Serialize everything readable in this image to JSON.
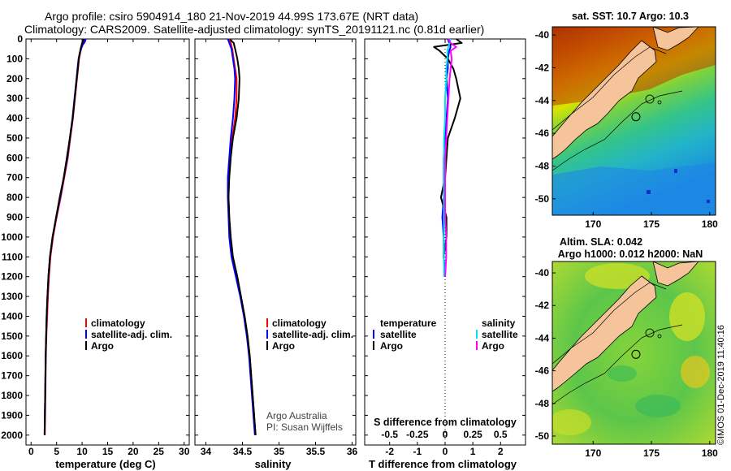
{
  "title": {
    "line1": "Argo profile: csiro 5904914_180 21-Nov-2019 44.99S 173.67E (NRT data)",
    "line2": "Climatology: CARS2009. Satellite-adjusted climatology: synTS_20191121.nc (0.81d earlier)"
  },
  "colors": {
    "climatology": "#ff0000",
    "satellite": "#0000ff",
    "argo": "#000000",
    "sat_salinity": "#00e5ee",
    "argo_salinity": "#ff00ff",
    "land": "#f5c49a"
  },
  "depth_axis": {
    "min": 0,
    "max": 2050,
    "ticks": [
      0,
      100,
      200,
      300,
      400,
      500,
      600,
      700,
      800,
      900,
      1000,
      1100,
      1200,
      1300,
      1400,
      1500,
      1600,
      1700,
      1800,
      1900,
      2000
    ]
  },
  "credit": {
    "line1": "Argo Australia",
    "line2": "PI: Susan Wijffels"
  },
  "imos_stamp": "©IMOS 01-Dec-2019 11:40:16",
  "chart_data": [
    {
      "type": "line",
      "name": "temperature-profile",
      "xlabel": "temperature (deg C)",
      "ylabel": "depth",
      "xlim": [
        -1,
        31
      ],
      "ylim": [
        2050,
        0
      ],
      "xticks": [
        0,
        5,
        10,
        15,
        20,
        25,
        30
      ],
      "legend": [
        "climatology",
        "satellite-adj. clim.",
        "Argo"
      ],
      "legend_position": "bottom-right",
      "depth": [
        0,
        10,
        20,
        30,
        50,
        75,
        100,
        150,
        200,
        300,
        400,
        500,
        600,
        700,
        800,
        900,
        1000,
        1100,
        1200,
        1300,
        1400,
        1500,
        1600,
        1700,
        1800,
        1900,
        2000
      ],
      "series": [
        {
          "name": "climatology",
          "color_key": "climatology",
          "values": [
            10.6,
            10.5,
            10.3,
            10.1,
            9.8,
            9.6,
            9.4,
            9.2,
            9.0,
            8.6,
            8.2,
            7.7,
            7.2,
            6.5,
            5.8,
            5.0,
            4.3,
            3.8,
            3.5,
            3.3,
            3.15,
            3.0,
            2.9,
            2.85,
            2.8,
            2.75,
            2.7
          ]
        },
        {
          "name": "satellite-adj. clim.",
          "color_key": "satellite",
          "values": [
            10.7,
            10.6,
            10.4,
            10.1,
            9.8,
            9.5,
            9.3,
            9.1,
            8.9,
            8.5,
            8.1,
            7.6,
            7.1,
            6.4,
            5.7,
            4.9,
            4.2,
            3.7,
            3.4,
            3.2,
            3.05,
            2.95,
            2.85,
            2.8,
            2.75,
            2.7,
            2.65
          ]
        },
        {
          "name": "Argo",
          "color_key": "argo",
          "values": [
            10.3,
            10.2,
            10.0,
            9.9,
            9.7,
            9.5,
            9.35,
            9.15,
            8.95,
            8.55,
            8.15,
            7.6,
            7.0,
            6.4,
            5.6,
            4.9,
            4.2,
            3.7,
            3.4,
            3.2,
            3.05,
            2.95,
            2.85,
            2.8,
            2.75,
            2.7,
            2.65
          ]
        }
      ]
    },
    {
      "type": "line",
      "name": "salinity-profile",
      "xlabel": "salinity",
      "ylabel": "depth",
      "xlim": [
        33.85,
        36.05
      ],
      "ylim": [
        2050,
        0
      ],
      "xticks": [
        34,
        34.5,
        35,
        35.5,
        36
      ],
      "xticklabels": [
        "34",
        "34.5",
        "35",
        "35.5",
        "36"
      ],
      "legend": [
        "climatology",
        "satellite-adj. clim.",
        "Argo"
      ],
      "legend_position": "bottom-right",
      "depth": [
        0,
        10,
        20,
        50,
        100,
        150,
        200,
        300,
        400,
        500,
        600,
        700,
        800,
        900,
        1000,
        1100,
        1200,
        1300,
        1400,
        1500,
        1600,
        1700,
        1800,
        1900,
        2000
      ],
      "series": [
        {
          "name": "climatology",
          "color_key": "climatology",
          "values": [
            34.32,
            34.33,
            34.34,
            34.36,
            34.38,
            34.4,
            34.42,
            34.42,
            34.4,
            34.36,
            34.33,
            34.31,
            34.31,
            34.32,
            34.33,
            34.36,
            34.42,
            34.48,
            34.53,
            34.57,
            34.6,
            34.62,
            34.64,
            34.66,
            34.68
          ]
        },
        {
          "name": "satellite-adj. clim.",
          "color_key": "satellite",
          "values": [
            34.3,
            34.31,
            34.32,
            34.35,
            34.37,
            34.39,
            34.4,
            34.39,
            34.37,
            34.34,
            34.32,
            34.3,
            34.3,
            34.31,
            34.32,
            34.35,
            34.41,
            34.47,
            34.52,
            34.56,
            34.59,
            34.61,
            34.63,
            34.65,
            34.67
          ]
        },
        {
          "name": "Argo",
          "color_key": "argo",
          "values": [
            34.33,
            34.35,
            34.38,
            34.4,
            34.43,
            34.45,
            34.46,
            34.45,
            34.42,
            34.37,
            34.34,
            34.32,
            34.31,
            34.32,
            34.34,
            34.37,
            34.43,
            34.48,
            34.53,
            34.57,
            34.6,
            34.62,
            34.64,
            34.66,
            34.68
          ]
        }
      ]
    },
    {
      "type": "line",
      "name": "difference-profile",
      "xlabel": "T difference from climatology",
      "top_axis_label": "S difference from climatology",
      "ylabel": "depth",
      "xlim": [
        -2.9,
        2.9
      ],
      "ylim": [
        2050,
        0
      ],
      "xticks": [
        -2,
        -1,
        0,
        1,
        2
      ],
      "s_ticks": [
        -0.5,
        -0.25,
        0,
        0.25,
        0.5
      ],
      "s_ticklabels": [
        "-0.5",
        "-0.25",
        "0",
        "0.25",
        "0.5"
      ],
      "s_scale": 4,
      "legend_temperature": {
        "header": "temperature",
        "items": [
          "satellite",
          "Argo"
        ]
      },
      "legend_salinity": {
        "header": "salinity",
        "items": [
          "satellite",
          "Argo"
        ]
      },
      "legend_position": "bottom",
      "depth": [
        0,
        20,
        40,
        60,
        100,
        150,
        200,
        300,
        400,
        500,
        600,
        700,
        800,
        900,
        1000,
        1100,
        1200
      ],
      "series": [
        {
          "name": "T satellite",
          "color_key": "satellite",
          "values": [
            0.1,
            0.15,
            0.2,
            0.15,
            0.1,
            0.1,
            0.05,
            0.1,
            0.05,
            0.0,
            -0.05,
            -0.05,
            -0.05,
            -0.1,
            -0.05,
            -0.05,
            0.0
          ]
        },
        {
          "name": "T Argo",
          "color_key": "argo",
          "values": [
            0.4,
            0.6,
            -0.4,
            -0.2,
            0.1,
            0.3,
            0.4,
            0.55,
            0.35,
            0.1,
            0.05,
            0.0,
            -0.15,
            0.05,
            0.05,
            -0.05,
            0.0
          ]
        },
        {
          "name": "S satellite",
          "color_key": "sat_salinity",
          "values": [
            0.05,
            0.04,
            0.03,
            0.02,
            0.02,
            0.01,
            0.01,
            0.0,
            0.0,
            -0.01,
            -0.01,
            -0.01,
            -0.01,
            -0.01,
            -0.01,
            -0.01,
            -0.01
          ]
        },
        {
          "name": "S Argo",
          "color_key": "argo_salinity",
          "values": [
            0.03,
            0.05,
            0.1,
            0.05,
            0.06,
            0.05,
            0.04,
            0.03,
            0.02,
            0.01,
            0.0,
            0.0,
            0.0,
            0.0,
            0.01,
            0.01,
            0.0
          ]
        }
      ]
    },
    {
      "type": "heatmap",
      "name": "sst-map",
      "title": "sat. SST: 10.7 Argo: 10.3",
      "xticks": [
        170,
        175,
        180
      ],
      "yticks": [
        -40,
        -42,
        -44,
        -46,
        -48,
        -50
      ],
      "xlim": [
        166.5,
        180.5
      ],
      "ylim": [
        -51,
        -39.5
      ],
      "float_position": {
        "lon": 173.67,
        "lat": -44.99
      },
      "colormap": "jet"
    },
    {
      "type": "heatmap",
      "name": "sla-map",
      "title_line1": "Altim. SLA: 0.042",
      "title_line2": "Argo h1000: 0.012 h2000: NaN",
      "xticks": [
        170,
        175,
        180
      ],
      "yticks": [
        -40,
        -42,
        -44,
        -46,
        -48,
        -50
      ],
      "xlim": [
        166.5,
        180.5
      ],
      "ylim": [
        -50.5,
        -39.3
      ],
      "float_position": {
        "lon": 173.67,
        "lat": -44.99
      },
      "colormap": "jet"
    }
  ]
}
